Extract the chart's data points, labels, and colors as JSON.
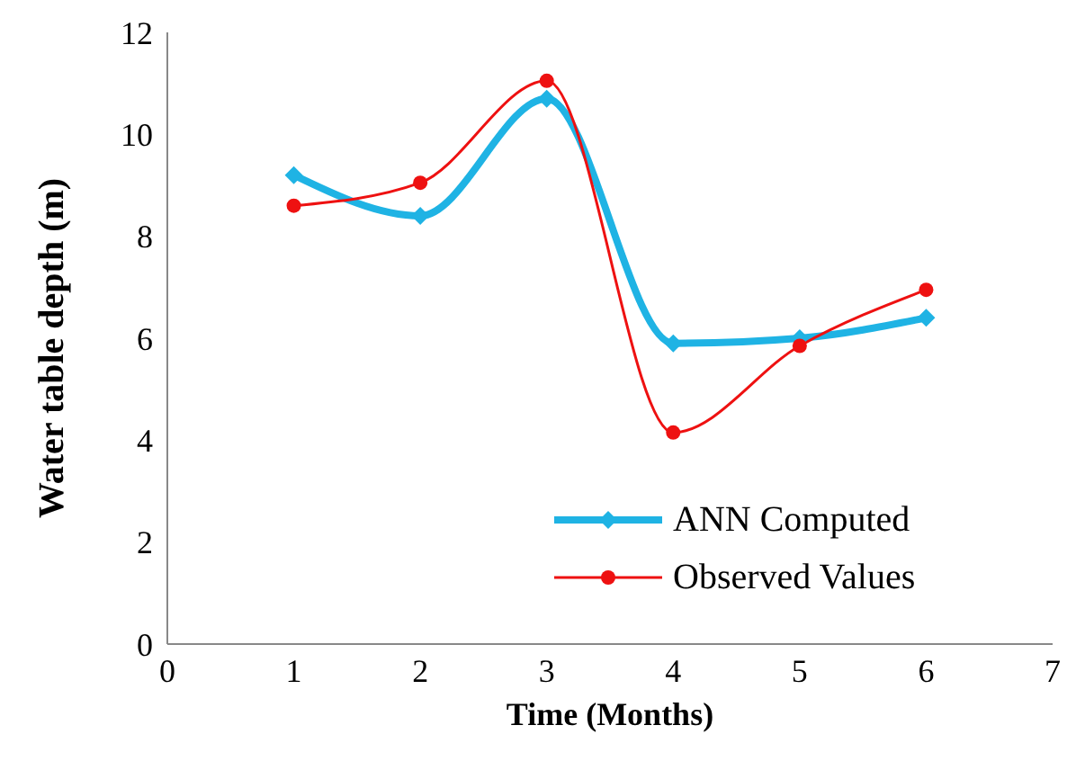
{
  "chart_data": {
    "type": "line",
    "xlabel": "Time (Months)",
    "ylabel": "Water table depth  (m)",
    "x": [
      1,
      2,
      3,
      4,
      5,
      6
    ],
    "series": [
      {
        "name": "ANN Computed",
        "color": "#1fb3e4",
        "marker": "diamond",
        "values": [
          9.2,
          8.4,
          10.7,
          5.9,
          6.0,
          6.4
        ]
      },
      {
        "name": "Observed Values",
        "color": "#ee1111",
        "marker": "circle",
        "values": [
          8.6,
          9.05,
          11.05,
          4.15,
          5.85,
          6.95
        ]
      }
    ],
    "xlim": [
      0,
      7
    ],
    "xticks": [
      0,
      1,
      2,
      3,
      4,
      5,
      6,
      7
    ],
    "ylim": [
      0,
      12
    ],
    "yticks": [
      0,
      2,
      4,
      6,
      8,
      10,
      12
    ],
    "grid": false,
    "legend": "bottom right",
    "line_style": "solid"
  }
}
